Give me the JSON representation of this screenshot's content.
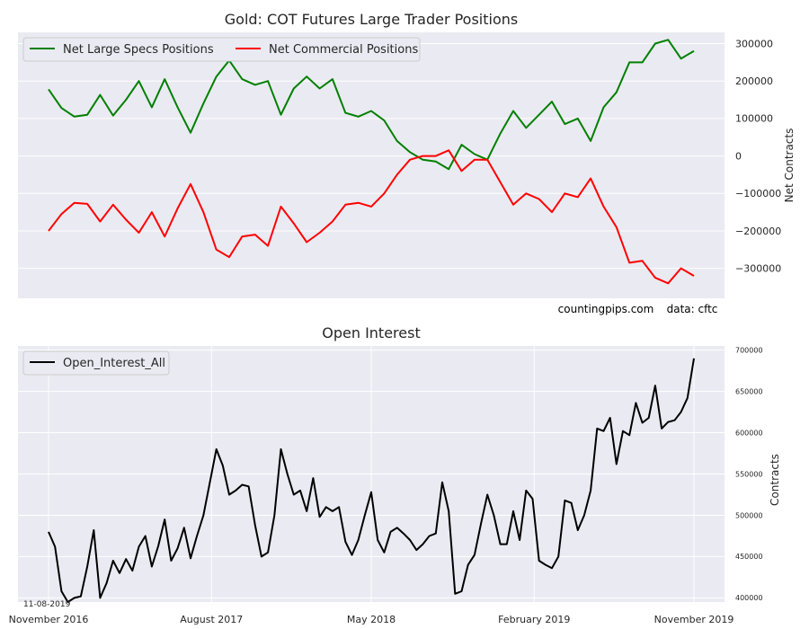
{
  "chart_data": [
    {
      "type": "line",
      "title": "Gold: COT Futures Large Trader Positions",
      "xlabel": "",
      "ylabel": "Net Contracts",
      "ylim": [
        -380000,
        330000
      ],
      "yticks": [
        300000,
        200000,
        100000,
        0,
        -100000,
        -200000,
        -300000
      ],
      "ytick_labels": [
        "300000",
        "200000",
        "100000",
        "0",
        "−100000",
        "−200000",
        "−300000"
      ],
      "yaxis_side": "right",
      "grid": true,
      "legend_position": "top-left",
      "annotations": [
        "countingpips.com",
        "data: cftc"
      ],
      "x": [
        0,
        4,
        8,
        12,
        16,
        20,
        24,
        28,
        32,
        36,
        40,
        44,
        48,
        52,
        56,
        60,
        64,
        68,
        72,
        76,
        80,
        84,
        88,
        92,
        96,
        100,
        104,
        108,
        112,
        116,
        120,
        124,
        128,
        132,
        136,
        140,
        144,
        148,
        152,
        156,
        160,
        164,
        168,
        172,
        176,
        180,
        184,
        188,
        192,
        196,
        200
      ],
      "series": [
        {
          "name": "Net Large Specs Positions",
          "color": "#008000",
          "values": [
            178000,
            128000,
            105000,
            110000,
            163000,
            108000,
            150000,
            200000,
            130000,
            205000,
            130000,
            62000,
            140000,
            212000,
            255000,
            205000,
            190000,
            200000,
            110000,
            180000,
            212000,
            180000,
            205000,
            115000,
            105000,
            120000,
            95000,
            40000,
            10000,
            -10000,
            -15000,
            -35000,
            30000,
            5000,
            -10000,
            60000,
            120000,
            75000,
            110000,
            145000,
            85000,
            100000,
            40000,
            130000,
            170000,
            250000,
            250000,
            300000,
            310000,
            260000,
            280000
          ]
        },
        {
          "name": "Net Commercial Positions",
          "color": "#ff0000",
          "values": [
            -200000,
            -155000,
            -125000,
            -128000,
            -175000,
            -130000,
            -170000,
            -205000,
            -150000,
            -215000,
            -140000,
            -75000,
            -150000,
            -250000,
            -270000,
            -215000,
            -210000,
            -240000,
            -135000,
            -180000,
            -230000,
            -205000,
            -175000,
            -130000,
            -125000,
            -135000,
            -100000,
            -50000,
            -10000,
            0,
            0,
            15000,
            -40000,
            -10000,
            -10000,
            -70000,
            -130000,
            -100000,
            -115000,
            -150000,
            -100000,
            -110000,
            -60000,
            -135000,
            -190000,
            -285000,
            -280000,
            -325000,
            -340000,
            -300000,
            -320000
          ]
        }
      ]
    },
    {
      "type": "line",
      "title": "Open Interest",
      "xlabel": "",
      "ylabel": "Contracts",
      "ylim": [
        395000,
        705000
      ],
      "yticks": [
        700000,
        650000,
        600000,
        550000,
        500000,
        450000,
        400000
      ],
      "ytick_labels": [
        "700000",
        "650000",
        "600000",
        "550000",
        "500000",
        "450000",
        "400000"
      ],
      "yaxis_side": "right",
      "grid": true,
      "legend_position": "top-left",
      "date_label": "11-08-2019",
      "x_tick_labels": [
        "November 2016",
        "August 2017",
        "May 2018",
        "February 2019",
        "November 2019"
      ],
      "x_tick_positions": [
        0,
        51,
        101,
        152,
        202
      ],
      "x": [
        0,
        2,
        4,
        6,
        8,
        10,
        12,
        14,
        16,
        18,
        20,
        22,
        24,
        26,
        28,
        30,
        32,
        34,
        36,
        38,
        40,
        42,
        44,
        46,
        48,
        50,
        52,
        54,
        56,
        58,
        60,
        62,
        64,
        66,
        68,
        70,
        72,
        74,
        76,
        78,
        80,
        82,
        84,
        86,
        88,
        90,
        92,
        94,
        96,
        98,
        100,
        102,
        104,
        106,
        108,
        110,
        112,
        114,
        116,
        118,
        120,
        122,
        124,
        126,
        128,
        130,
        132,
        134,
        136,
        138,
        140,
        142,
        144,
        146,
        148,
        150,
        152,
        154,
        156,
        158,
        160,
        162,
        164,
        166,
        168,
        170,
        172,
        174,
        176,
        178,
        180,
        182,
        184,
        186,
        188,
        190,
        192,
        194,
        196,
        198,
        200
      ],
      "series": [
        {
          "name": "Open_Interest_All",
          "color": "#000000",
          "values": [
            480000,
            462000,
            408000,
            395000,
            400000,
            402000,
            438000,
            482000,
            400000,
            418000,
            445000,
            430000,
            447000,
            433000,
            462000,
            475000,
            438000,
            463000,
            495000,
            445000,
            460000,
            485000,
            448000,
            475000,
            500000,
            540000,
            580000,
            560000,
            525000,
            530000,
            537000,
            535000,
            488000,
            450000,
            455000,
            500000,
            580000,
            550000,
            525000,
            530000,
            505000,
            545000,
            498000,
            510000,
            505000,
            510000,
            468000,
            452000,
            470000,
            500000,
            528000,
            470000,
            455000,
            480000,
            485000,
            478000,
            470000,
            458000,
            465000,
            475000,
            478000,
            540000,
            505000,
            405000,
            408000,
            440000,
            452000,
            490000,
            525000,
            500000,
            465000,
            465000,
            505000,
            470000,
            530000,
            520000,
            445000,
            440000,
            436000,
            450000,
            518000,
            515000,
            482000,
            500000,
            530000,
            605000,
            602000,
            618000,
            562000,
            602000,
            597000,
            636000,
            612000,
            618000,
            657000,
            605000,
            613000,
            615000,
            625000,
            642000,
            690000
          ]
        }
      ]
    }
  ]
}
